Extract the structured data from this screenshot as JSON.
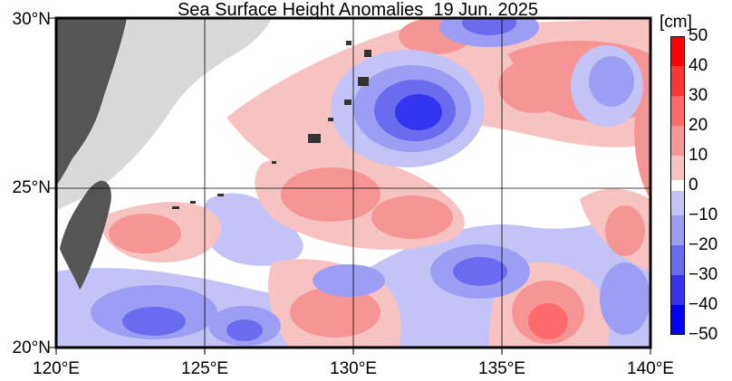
{
  "title": "Sea Surface Height Anomalies  19 Jun. 2025",
  "colorbar": {
    "unit": "[cm]",
    "ticks": [
      "50",
      "40",
      "30",
      "20",
      "10",
      "0",
      "−10",
      "−20",
      "−30",
      "−40",
      "−50"
    ],
    "colors": [
      "#ff0000",
      "#ff3535",
      "#ff6b6b",
      "#f59595",
      "#f7c2c2",
      "#ffffff",
      "#c3c3f8",
      "#9d9df4",
      "#6b6bf0",
      "#3434ee",
      "#0000ff"
    ]
  },
  "axes": {
    "lat_labels": [
      "30°N",
      "25°N",
      "20°N"
    ],
    "lon_labels": [
      "120°E",
      "125°E",
      "130°E",
      "135°E",
      "140°E"
    ]
  },
  "colors": {
    "land": "#d9d9d9",
    "taiwan": "#555555",
    "grid": "#000000"
  }
}
